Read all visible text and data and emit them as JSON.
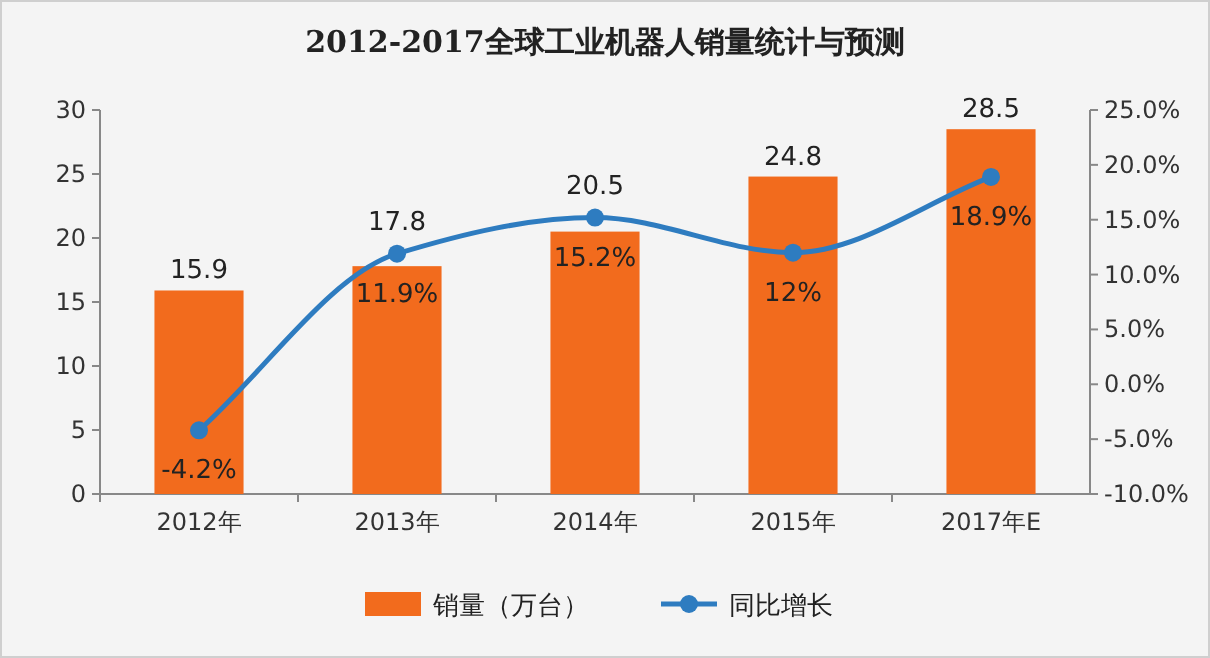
{
  "chart_data": {
    "type": "bar",
    "title": "2012-2017全球工业机器人销量统计与预测",
    "categories": [
      "2012年",
      "2013年",
      "2014年",
      "2015年",
      "2017年E"
    ],
    "series": [
      {
        "name": "销量（万台）",
        "color": "#f26b1d",
        "values": [
          15.9,
          17.8,
          20.5,
          24.8,
          28.5
        ]
      },
      {
        "type": "line",
        "name": "同比增长",
        "color": "#2e7cc0",
        "axis": "y2",
        "values": [
          -4.2,
          11.9,
          15.2,
          12,
          18.9
        ],
        "value_labels": [
          "-4.2%",
          "11.9%",
          "15.2%",
          "12%",
          "18.9%"
        ]
      }
    ],
    "ylim": [
      0,
      30
    ],
    "yticks": [
      0,
      5,
      10,
      15,
      20,
      25,
      30
    ],
    "y2lim": [
      -10,
      25
    ],
    "y2ticks": [
      {
        "value": -10,
        "label": "-10.0%"
      },
      {
        "value": -5,
        "label": "-5.0%"
      },
      {
        "value": 0,
        "label": "0.0%"
      },
      {
        "value": 5,
        "label": "5.0%"
      },
      {
        "value": 10,
        "label": "10.0%"
      },
      {
        "value": 15,
        "label": "15.0%"
      },
      {
        "value": 20,
        "label": "20.0%"
      },
      {
        "value": 25,
        "label": "25.0%"
      }
    ],
    "data_labels": true,
    "marker": "circle",
    "legend": "bottom",
    "grid": false
  }
}
